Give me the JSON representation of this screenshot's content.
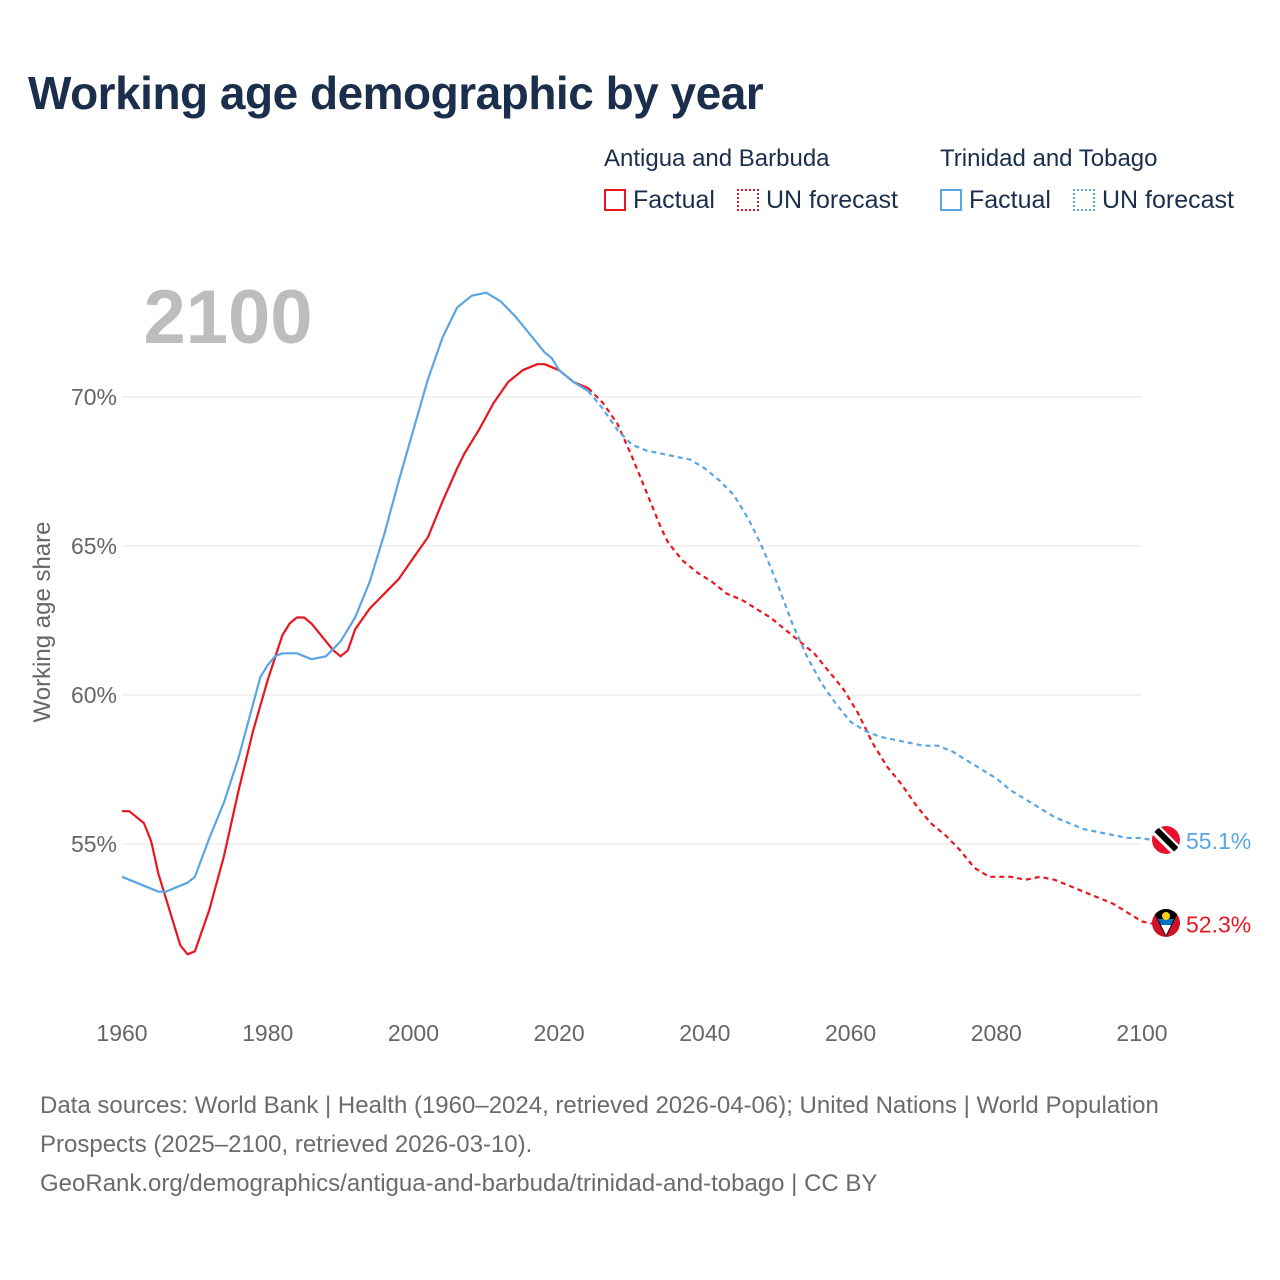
{
  "title": "Working age demographic by year",
  "legend": {
    "groups": [
      {
        "name": "Antigua and Barbuda",
        "factual_label": "Factual",
        "forecast_label": "UN forecast",
        "color": "#e8171f"
      },
      {
        "name": "Trinidad and Tobago",
        "factual_label": "Factual",
        "forecast_label": "UN forecast",
        "color": "#5aa6e3"
      }
    ]
  },
  "footer": {
    "sources": "Data sources: World Bank | Health (1960–2024, retrieved 2026-04-06); United Nations | World Population Prospects (2025–2100, retrieved 2026-03-10).",
    "link": "GeoRank.org/demographics/antigua-and-barbuda/trinidad-and-tobago | CC BY"
  },
  "chart_data": {
    "type": "line",
    "year_label": "2100",
    "ylabel": "Working age share",
    "xlim": [
      1960,
      2100
    ],
    "ylim": [
      50,
      75
    ],
    "x_ticks": [
      1960,
      1980,
      2000,
      2020,
      2040,
      2060,
      2080,
      2100
    ],
    "x_tick_labels": [
      "1960",
      "1980",
      "2000",
      "2020",
      "2040",
      "2060",
      "2080",
      "2100"
    ],
    "y_ticks": [
      55,
      60,
      65,
      70
    ],
    "y_tick_labels": [
      "55%",
      "60%",
      "65%",
      "70%"
    ],
    "factual_end_year": 2024,
    "series": [
      {
        "name": "Antigua and Barbuda",
        "color": "#e8171f",
        "end_label": "52.3%",
        "flag": "antigua-flag-icon",
        "points": [
          [
            1960,
            56.1
          ],
          [
            1961,
            56.1
          ],
          [
            1963,
            55.7
          ],
          [
            1964,
            55.1
          ],
          [
            1965,
            54.0
          ],
          [
            1966,
            53.2
          ],
          [
            1967,
            52.4
          ],
          [
            1968,
            51.6
          ],
          [
            1969,
            51.3
          ],
          [
            1970,
            51.4
          ],
          [
            1972,
            52.8
          ],
          [
            1974,
            54.6
          ],
          [
            1976,
            56.8
          ],
          [
            1978,
            58.8
          ],
          [
            1980,
            60.5
          ],
          [
            1982,
            62.0
          ],
          [
            1983,
            62.4
          ],
          [
            1984,
            62.6
          ],
          [
            1985,
            62.6
          ],
          [
            1986,
            62.4
          ],
          [
            1988,
            61.8
          ],
          [
            1989,
            61.5
          ],
          [
            1990,
            61.3
          ],
          [
            1991,
            61.5
          ],
          [
            1992,
            62.2
          ],
          [
            1994,
            62.9
          ],
          [
            1996,
            63.4
          ],
          [
            1998,
            63.9
          ],
          [
            2000,
            64.6
          ],
          [
            2002,
            65.3
          ],
          [
            2004,
            66.5
          ],
          [
            2006,
            67.6
          ],
          [
            2007,
            68.1
          ],
          [
            2009,
            68.9
          ],
          [
            2011,
            69.8
          ],
          [
            2013,
            70.5
          ],
          [
            2015,
            70.9
          ],
          [
            2017,
            71.1
          ],
          [
            2018,
            71.1
          ],
          [
            2020,
            70.9
          ],
          [
            2022,
            70.5
          ],
          [
            2024,
            70.3
          ],
          [
            2026,
            69.8
          ],
          [
            2028,
            69.1
          ],
          [
            2030,
            68.0
          ],
          [
            2032,
            66.8
          ],
          [
            2034,
            65.6
          ],
          [
            2035,
            65.1
          ],
          [
            2037,
            64.5
          ],
          [
            2039,
            64.1
          ],
          [
            2041,
            63.8
          ],
          [
            2043,
            63.4
          ],
          [
            2045,
            63.2
          ],
          [
            2047,
            62.9
          ],
          [
            2049,
            62.6
          ],
          [
            2051,
            62.2
          ],
          [
            2053,
            61.8
          ],
          [
            2055,
            61.4
          ],
          [
            2057,
            60.8
          ],
          [
            2059,
            60.2
          ],
          [
            2061,
            59.4
          ],
          [
            2063,
            58.4
          ],
          [
            2065,
            57.6
          ],
          [
            2067,
            57.0
          ],
          [
            2069,
            56.3
          ],
          [
            2071,
            55.7
          ],
          [
            2073,
            55.3
          ],
          [
            2075,
            54.8
          ],
          [
            2077,
            54.2
          ],
          [
            2079,
            53.9
          ],
          [
            2082,
            53.9
          ],
          [
            2084,
            53.8
          ],
          [
            2086,
            53.9
          ],
          [
            2088,
            53.8
          ],
          [
            2090,
            53.6
          ],
          [
            2093,
            53.3
          ],
          [
            2096,
            53.0
          ],
          [
            2098,
            52.7
          ],
          [
            2100,
            52.4
          ],
          [
            2102,
            52.3
          ]
        ]
      },
      {
        "name": "Trinidad and Tobago",
        "color": "#5aa6e3",
        "end_label": "55.1%",
        "flag": "trinidad-flag-icon",
        "points": [
          [
            1960,
            53.9
          ],
          [
            1961,
            53.8
          ],
          [
            1962,
            53.7
          ],
          [
            1964,
            53.5
          ],
          [
            1965,
            53.4
          ],
          [
            1966,
            53.4
          ],
          [
            1968,
            53.6
          ],
          [
            1969,
            53.7
          ],
          [
            1970,
            53.9
          ],
          [
            1972,
            55.2
          ],
          [
            1974,
            56.4
          ],
          [
            1976,
            57.9
          ],
          [
            1978,
            59.7
          ],
          [
            1979,
            60.6
          ],
          [
            1980,
            61.0
          ],
          [
            1981,
            61.3
          ],
          [
            1982,
            61.4
          ],
          [
            1984,
            61.4
          ],
          [
            1986,
            61.2
          ],
          [
            1988,
            61.3
          ],
          [
            1990,
            61.8
          ],
          [
            1992,
            62.6
          ],
          [
            1994,
            63.8
          ],
          [
            1996,
            65.4
          ],
          [
            1998,
            67.2
          ],
          [
            2000,
            68.9
          ],
          [
            2002,
            70.6
          ],
          [
            2004,
            72.0
          ],
          [
            2006,
            73.0
          ],
          [
            2008,
            73.4
          ],
          [
            2010,
            73.5
          ],
          [
            2012,
            73.2
          ],
          [
            2014,
            72.7
          ],
          [
            2016,
            72.1
          ],
          [
            2018,
            71.5
          ],
          [
            2019,
            71.3
          ],
          [
            2020,
            70.9
          ],
          [
            2022,
            70.5
          ],
          [
            2024,
            70.2
          ],
          [
            2026,
            69.6
          ],
          [
            2028,
            68.9
          ],
          [
            2030,
            68.4
          ],
          [
            2032,
            68.2
          ],
          [
            2034,
            68.1
          ],
          [
            2036,
            68.0
          ],
          [
            2038,
            67.9
          ],
          [
            2040,
            67.6
          ],
          [
            2042,
            67.2
          ],
          [
            2044,
            66.7
          ],
          [
            2046,
            65.9
          ],
          [
            2048,
            64.9
          ],
          [
            2050,
            63.7
          ],
          [
            2052,
            62.4
          ],
          [
            2054,
            61.3
          ],
          [
            2056,
            60.4
          ],
          [
            2058,
            59.7
          ],
          [
            2060,
            59.1
          ],
          [
            2062,
            58.8
          ],
          [
            2064,
            58.6
          ],
          [
            2066,
            58.5
          ],
          [
            2068,
            58.4
          ],
          [
            2070,
            58.3
          ],
          [
            2072,
            58.3
          ],
          [
            2074,
            58.1
          ],
          [
            2076,
            57.8
          ],
          [
            2078,
            57.5
          ],
          [
            2080,
            57.2
          ],
          [
            2082,
            56.8
          ],
          [
            2084,
            56.5
          ],
          [
            2086,
            56.2
          ],
          [
            2088,
            55.9
          ],
          [
            2090,
            55.7
          ],
          [
            2092,
            55.5
          ],
          [
            2094,
            55.4
          ],
          [
            2096,
            55.3
          ],
          [
            2098,
            55.2
          ],
          [
            2100,
            55.2
          ],
          [
            2102,
            55.1
          ]
        ]
      }
    ]
  }
}
